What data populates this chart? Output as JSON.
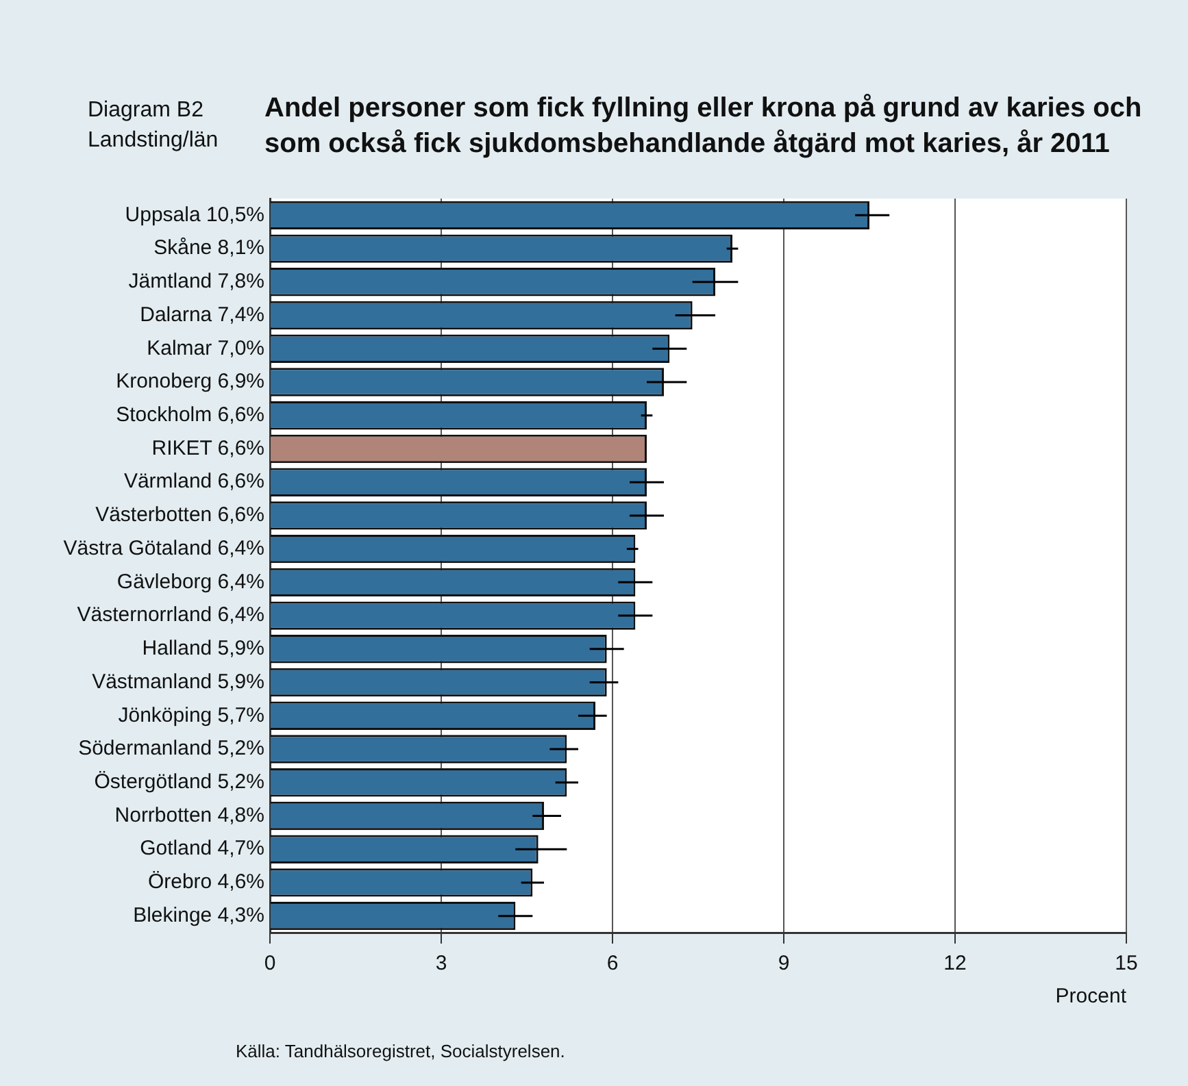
{
  "chart_data": {
    "type": "bar",
    "orientation": "horizontal",
    "title": "Andel personer som fick fyllning eller krona på grund av karies och som också fick sjukdomsbehandlande åtgärd mot karies, år 2011",
    "subtitle": "Diagram B2\nLandsting/län",
    "xlabel": "Procent",
    "annotations": [
      "Källa: Tandhälsoregistret, Socialstyrelsen."
    ],
    "categories": [
      "Uppsala 10,5%",
      "Skåne 8,1%",
      "Jämtland 7,8%",
      "Dalarna 7,4%",
      "Kalmar 7,0%",
      "Kronoberg 6,9%",
      "Stockholm 6,6%",
      "RIKET 6,6%",
      "Värmland 6,6%",
      "Västerbotten 6,6%",
      "Västra Götaland 6,4%",
      "Gävleborg 6,4%",
      "Västernorrland 6,4%",
      "Halland 5,9%",
      "Västmanland 5,9%",
      "Jönköping 5,7%",
      "Södermanland 5,2%",
      "Östergötland 5,2%",
      "Norrbotten 4,8%",
      "Gotland 4,7%",
      "Örebro 4,6%",
      "Blekinge 4,3%"
    ],
    "values": [
      10.5,
      8.1,
      7.8,
      7.4,
      7.0,
      6.9,
      6.6,
      6.6,
      6.6,
      6.6,
      6.4,
      6.4,
      6.4,
      5.9,
      5.9,
      5.7,
      5.2,
      5.2,
      4.8,
      4.7,
      4.6,
      4.3
    ],
    "colors": [
      "#336f9b",
      "#336f9b",
      "#336f9b",
      "#336f9b",
      "#336f9b",
      "#336f9b",
      "#336f9b",
      "#b08478",
      "#336f9b",
      "#336f9b",
      "#336f9b",
      "#336f9b",
      "#336f9b",
      "#336f9b",
      "#336f9b",
      "#336f9b",
      "#336f9b",
      "#336f9b",
      "#336f9b",
      "#336f9b",
      "#336f9b",
      "#336f9b"
    ],
    "errors": [
      [
        10.25,
        10.85
      ],
      [
        8.0,
        8.2
      ],
      [
        7.4,
        8.2
      ],
      [
        7.1,
        7.8
      ],
      [
        6.7,
        7.3
      ],
      [
        6.6,
        7.3
      ],
      [
        6.5,
        6.7
      ],
      null,
      [
        6.3,
        6.9
      ],
      [
        6.3,
        6.9
      ],
      [
        6.25,
        6.45
      ],
      [
        6.1,
        6.7
      ],
      [
        6.1,
        6.7
      ],
      [
        5.6,
        6.2
      ],
      [
        5.6,
        6.1
      ],
      [
        5.4,
        5.9
      ],
      [
        4.9,
        5.4
      ],
      [
        5.0,
        5.4
      ],
      [
        4.6,
        5.1
      ],
      [
        4.3,
        5.2
      ],
      [
        4.4,
        4.8
      ],
      [
        4.0,
        4.6
      ]
    ],
    "xlim": [
      0,
      15
    ],
    "xticks": [
      0,
      3,
      6,
      9,
      12,
      15
    ],
    "grid": "x",
    "legend": false
  }
}
